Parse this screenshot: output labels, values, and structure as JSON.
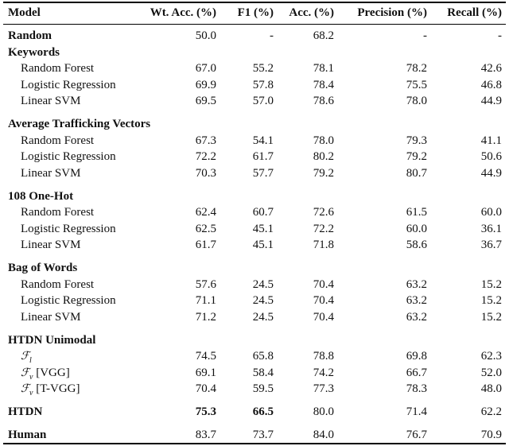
{
  "table": {
    "header": [
      "Model",
      "Wt. Acc. (%)",
      "F1 (%)",
      "Acc. (%)",
      "Precision (%)",
      "Recall (%)"
    ],
    "sections": [
      {
        "title": "Random",
        "values": [
          "50.0",
          "-",
          "68.2",
          "-",
          "-"
        ]
      },
      {
        "title": "Keywords",
        "rows": [
          {
            "label": "Random Forest",
            "values": [
              "67.0",
              "55.2",
              "78.1",
              "78.2",
              "42.6"
            ]
          },
          {
            "label": "Logistic Regression",
            "values": [
              "69.9",
              "57.8",
              "78.4",
              "75.5",
              "46.8"
            ]
          },
          {
            "label": "Linear SVM",
            "values": [
              "69.5",
              "57.0",
              "78.6",
              "78.0",
              "44.9"
            ]
          }
        ]
      },
      {
        "title": "Average Trafficking Vectors",
        "rows": [
          {
            "label": "Random Forest",
            "values": [
              "67.3",
              "54.1",
              "78.0",
              "79.3",
              "41.1"
            ]
          },
          {
            "label": "Logistic Regression",
            "values": [
              "72.2",
              "61.7",
              "80.2",
              "79.2",
              "50.6"
            ]
          },
          {
            "label": "Linear SVM",
            "values": [
              "70.3",
              "57.7",
              "79.2",
              "80.7",
              "44.9"
            ]
          }
        ]
      },
      {
        "title": "108 One-Hot",
        "rows": [
          {
            "label": "Random Forest",
            "values": [
              "62.4",
              "60.7",
              "72.6",
              "61.5",
              "60.0"
            ]
          },
          {
            "label": "Logistic Regression",
            "values": [
              "62.5",
              "45.1",
              "72.2",
              "60.0",
              "36.1"
            ]
          },
          {
            "label": "Linear SVM",
            "values": [
              "61.7",
              "45.1",
              "71.8",
              "58.6",
              "36.7"
            ]
          }
        ]
      },
      {
        "title": "Bag of Words",
        "rows": [
          {
            "label": "Random Forest",
            "values": [
              "57.6",
              "24.5",
              "70.4",
              "63.2",
              "15.2"
            ]
          },
          {
            "label": "Logistic Regression",
            "values": [
              "71.1",
              "24.5",
              "70.4",
              "63.2",
              "15.2"
            ]
          },
          {
            "label": "Linear SVM",
            "values": [
              "71.2",
              "24.5",
              "70.4",
              "63.2",
              "15.2"
            ]
          }
        ]
      },
      {
        "title": "HTDN Unimodal",
        "rows": [
          {
            "symbol": "ℱ",
            "sub": "l",
            "values": [
              "74.5",
              "65.8",
              "78.8",
              "69.8",
              "62.3"
            ]
          },
          {
            "symbol": "ℱ",
            "sub": "v",
            "suffix": "[VGG]",
            "values": [
              "69.1",
              "58.4",
              "74.2",
              "66.7",
              "52.0"
            ]
          },
          {
            "symbol": "ℱ",
            "sub": "v",
            "suffix": "[T-VGG]",
            "values": [
              "70.4",
              "59.5",
              "77.3",
              "78.3",
              "48.0"
            ]
          }
        ]
      },
      {
        "title": "HTDN",
        "values": [
          "75.3",
          "66.5",
          "80.0",
          "71.4",
          "62.2"
        ],
        "bold_values": [
          true,
          true,
          false,
          false,
          false
        ]
      },
      {
        "title": "Human",
        "values": [
          "83.7",
          "73.7",
          "84.0",
          "76.7",
          "70.9"
        ]
      }
    ]
  }
}
